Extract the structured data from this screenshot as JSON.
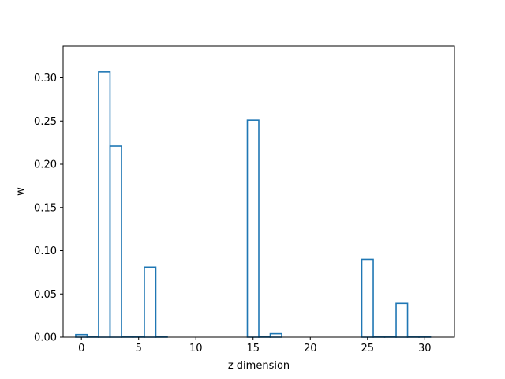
{
  "chart_data": {
    "type": "bar",
    "style": "step-outline",
    "title": "",
    "xlabel": "z dimension",
    "ylabel": "w",
    "x": [
      0,
      1,
      2,
      3,
      4,
      5,
      6,
      7,
      8,
      9,
      10,
      11,
      12,
      13,
      14,
      15,
      16,
      17,
      18,
      19,
      20,
      21,
      22,
      23,
      24,
      25,
      26,
      27,
      28,
      29,
      30,
      31
    ],
    "values": [
      0.003,
      0.001,
      0.307,
      0.221,
      0.001,
      0.001,
      0.081,
      0.001,
      0.0,
      0.0,
      0.0,
      0.0,
      0.0,
      0.0,
      0.0,
      0.251,
      0.001,
      0.004,
      0.0,
      0.0,
      0.0,
      0.0,
      0.0,
      0.0,
      0.0,
      0.09,
      0.001,
      0.001,
      0.039,
      0.001,
      0.001,
      0.0
    ],
    "xlim": [
      -1.6,
      32.6
    ],
    "ylim": [
      0,
      0.337
    ],
    "xticks": [
      0,
      5,
      10,
      15,
      20,
      25,
      30
    ],
    "xtick_labels": [
      "0",
      "5",
      "10",
      "15",
      "20",
      "25",
      "30"
    ],
    "yticks": [
      0.0,
      0.05,
      0.1,
      0.15,
      0.2,
      0.25,
      0.3
    ],
    "ytick_labels": [
      "0.00",
      "0.05",
      "0.10",
      "0.15",
      "0.20",
      "0.25",
      "0.30"
    ],
    "grid": false,
    "legend": "none",
    "line_color": "#1f77b4"
  }
}
